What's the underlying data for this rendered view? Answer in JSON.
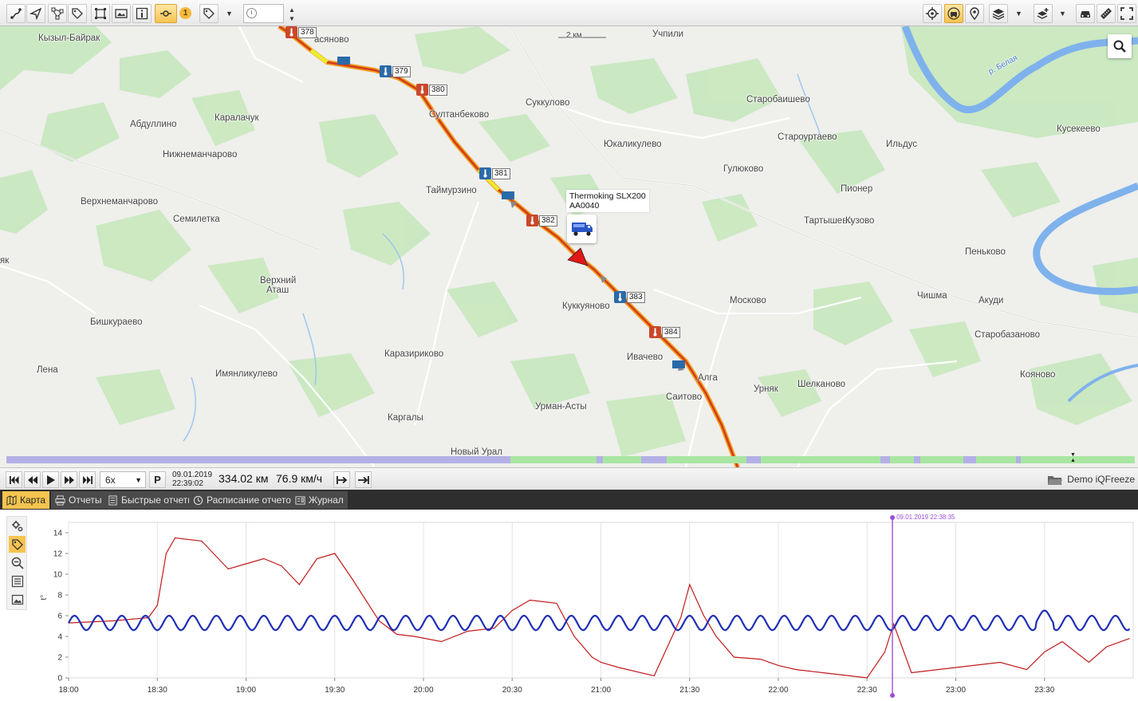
{
  "toolbar": {
    "badge_count": "1",
    "time_value": "",
    "icons": [
      "route-icon",
      "navigate-icon",
      "geofence-icon",
      "tags-icon",
      "select-area-icon",
      "gallery-icon",
      "info-icon",
      "track-points-icon",
      "tag-filter-icon",
      "clock-icon",
      "target-icon",
      "vehicle-center-icon",
      "pin-icon",
      "layers-icon",
      "add-layer-icon",
      "car-icon",
      "ruler-icon",
      "fullscreen-icon"
    ]
  },
  "map": {
    "places": [
      {
        "id": "kyzyl-bayrak",
        "text": "Кызыл-Байрак"
      },
      {
        "id": "vasyanovo",
        "text": "асяново"
      },
      {
        "id": "uchpili",
        "text": "Учпили"
      },
      {
        "id": "scale",
        "text": "2 км"
      },
      {
        "id": "river-belaya",
        "text": "р. Белая"
      },
      {
        "id": "abdullino",
        "text": "Абдуллино"
      },
      {
        "id": "karalachuk",
        "text": "Каралачук"
      },
      {
        "id": "sultanbekovo",
        "text": "Султанбеково"
      },
      {
        "id": "sukkulovo",
        "text": "Суккулово"
      },
      {
        "id": "starobaishevo",
        "text": "Старобаишево"
      },
      {
        "id": "kusekeevo",
        "text": "Кусекеево"
      },
      {
        "id": "nizhnemancharovo",
        "text": "Нижнеманчарово"
      },
      {
        "id": "yukalikulevo",
        "text": "Юкаликулево"
      },
      {
        "id": "staroyurtaevo",
        "text": "Староуртаево"
      },
      {
        "id": "ildyus",
        "text": "Ильдус"
      },
      {
        "id": "gulyukovo",
        "text": "Гулюково"
      },
      {
        "id": "taymurzino",
        "text": "Таймурзино"
      },
      {
        "id": "pioner",
        "text": "Пионер"
      },
      {
        "id": "verkhnemancharovo",
        "text": "Верхнеманчарово"
      },
      {
        "id": "semiletka",
        "text": "Семилетка"
      },
      {
        "id": "tartyshevo",
        "text": "Тартышево"
      },
      {
        "id": "kuzovo",
        "text": "Кузово"
      },
      {
        "id": "penkovo",
        "text": "Пеньково"
      },
      {
        "id": "yak",
        "text": "як"
      },
      {
        "id": "verkhniy-atash-1",
        "text": "Верхний"
      },
      {
        "id": "verkhniy-atash-2",
        "text": "Аташ"
      },
      {
        "id": "chishma",
        "text": "Чишма"
      },
      {
        "id": "akudi",
        "text": "Акуди"
      },
      {
        "id": "moskovo",
        "text": "Москово"
      },
      {
        "id": "kukkuyanovo",
        "text": "Куккуяново"
      },
      {
        "id": "bishkuraevo",
        "text": "Бишкураево"
      },
      {
        "id": "starobazanovo",
        "text": "Старобазаново"
      },
      {
        "id": "karazirikovo",
        "text": "Каразириково"
      },
      {
        "id": "ivachevo",
        "text": "Ивачево"
      },
      {
        "id": "lena",
        "text": "Лена"
      },
      {
        "id": "imyanlikulevo",
        "text": "Имянликулево"
      },
      {
        "id": "alga",
        "text": "Алга"
      },
      {
        "id": "koyanovo",
        "text": "Кояново"
      },
      {
        "id": "shelkanovo",
        "text": "Шелканово"
      },
      {
        "id": "urnyak",
        "text": "Урняк"
      },
      {
        "id": "saitovo",
        "text": "Саитово"
      },
      {
        "id": "urman-asty",
        "text": "Урман-Асты"
      },
      {
        "id": "kargaly",
        "text": "Каргалы"
      },
      {
        "id": "novyy-ural",
        "text": "Новый Урал"
      }
    ],
    "km_markers": [
      {
        "km": "378",
        "sensor": "red"
      },
      {
        "km": "379",
        "sensor": "blue"
      },
      {
        "km": "380",
        "sensor": "red"
      },
      {
        "km": "381",
        "sensor": "blue"
      },
      {
        "km": "382",
        "sensor": "red"
      },
      {
        "km": "383",
        "sensor": "blue"
      },
      {
        "km": "384",
        "sensor": "red"
      }
    ],
    "vehicle": {
      "name": "Thermoking SLX200",
      "plate": "AA0040"
    }
  },
  "playbar": {
    "speed_option": "6x",
    "p_label": "P",
    "date": "09.01.2019",
    "time": "22:39:02",
    "distance": "334.02 км",
    "speed": "76.9 км/ч",
    "account": "Demo iQFreeze"
  },
  "tabs": [
    {
      "label": "Карта",
      "icon": "map-icon",
      "active": true
    },
    {
      "label": "Отчеты",
      "icon": "print-icon",
      "active": false
    },
    {
      "label": "Быстрые отчеты",
      "icon": "report-icon",
      "active": false
    },
    {
      "label": "Расписание отчетов",
      "icon": "schedule-icon",
      "active": false
    },
    {
      "label": "Журнал",
      "icon": "journal-icon",
      "active": false
    }
  ],
  "colors": {
    "accent": "#f6c44f",
    "track_red": "#d23a1a",
    "track_orange": "#f0a020",
    "series_red": "#c21b1b",
    "series_blue": "#1f2fb5",
    "cursor": "#9b4fd6"
  },
  "chart_data": {
    "type": "line",
    "ylabel": "t°",
    "ylim": [
      0,
      15
    ],
    "yticks": [
      "0",
      "2",
      "4",
      "6",
      "8",
      "10",
      "12",
      "14"
    ],
    "xticks": [
      "18:00",
      "18:30",
      "19:00",
      "19:30",
      "20:00",
      "20:30",
      "21:00",
      "21:30",
      "22:00",
      "22:30",
      "23:00",
      "23:30"
    ],
    "cursor_label": "09.01.2019 22:38:35",
    "cursor_x": "22:38:35",
    "x_hours": [
      18.0,
      18.25,
      18.45,
      18.5,
      18.55,
      18.6,
      18.75,
      18.9,
      19.0,
      19.1,
      19.2,
      19.3,
      19.4,
      19.5,
      19.6,
      19.75,
      19.85,
      19.95,
      20.1,
      20.25,
      20.4,
      20.5,
      20.6,
      20.75,
      20.85,
      20.95,
      21.0,
      21.1,
      21.3,
      21.45,
      21.5,
      21.58,
      21.65,
      21.75,
      21.9,
      22.0,
      22.1,
      22.25,
      22.4,
      22.5,
      22.6,
      22.65,
      22.75,
      23.0,
      23.25,
      23.4,
      23.5,
      23.6,
      23.75,
      23.85,
      23.98
    ],
    "series": [
      {
        "name": "",
        "color": "#c21b1b",
        "values": [
          5.3,
          5.5,
          5.8,
          7.0,
          12.0,
          13.5,
          13.2,
          10.5,
          11.0,
          11.5,
          10.8,
          9.0,
          11.5,
          12.0,
          9.5,
          5.5,
          4.2,
          4.0,
          3.5,
          4.5,
          4.8,
          6.5,
          7.5,
          7.2,
          4.0,
          2.0,
          1.5,
          1.0,
          0.2,
          5.8,
          9.0,
          6.0,
          4.0,
          2.0,
          1.8,
          1.2,
          0.8,
          0.5,
          0.2,
          0.0,
          2.5,
          5.2,
          0.5,
          1.0,
          1.5,
          0.8,
          2.5,
          3.5,
          1.5,
          3.0,
          3.8
        ]
      },
      {
        "name": "",
        "color": "#1f2fb5",
        "base": 5.3,
        "amplitude": 0.7,
        "period_min": 8,
        "values": [
          5.3,
          6.0,
          4.6,
          6.0,
          4.6,
          6.0,
          4.6,
          6.0,
          4.6,
          6.0,
          4.6,
          6.0,
          4.6,
          6.0,
          4.6,
          6.0,
          4.6,
          6.0,
          4.6,
          6.0,
          4.6,
          6.0,
          4.6,
          6.0,
          4.6,
          6.0,
          4.6,
          6.0,
          4.6,
          6.0,
          4.6,
          6.0,
          4.6,
          6.0,
          4.6,
          6.0,
          4.6,
          6.0,
          4.6,
          6.0,
          4.6,
          6.0,
          4.6,
          6.0,
          4.6,
          6.0,
          4.6,
          6.0,
          4.6,
          6.0,
          5.4
        ]
      }
    ]
  }
}
